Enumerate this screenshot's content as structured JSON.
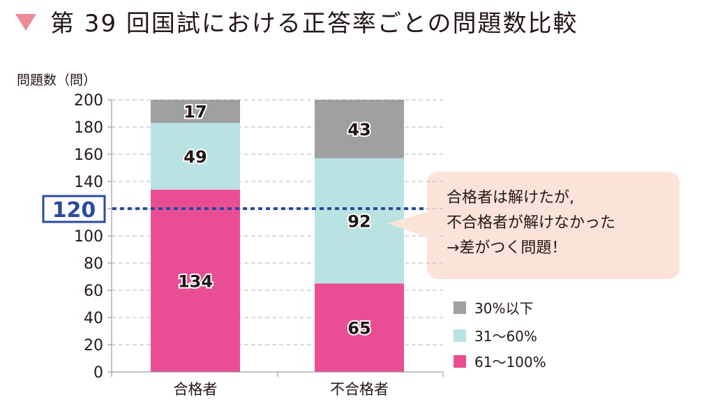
{
  "title": "第 39 回国試における正答率ごとの問題数比較",
  "callout": [
    "合格者は解けたが,",
    "不合格者が解けなかった",
    "→差がつく問題！"
  ],
  "chart_data": {
    "type": "bar",
    "stacked": true,
    "ylabel": "問題数（問）",
    "ylim": [
      0,
      200
    ],
    "yticks": [
      0,
      20,
      40,
      60,
      80,
      100,
      120,
      140,
      160,
      180,
      200
    ],
    "categories": [
      "合格者",
      "不合格者"
    ],
    "series": [
      {
        "name": "61〜100%",
        "color": "#e94e95",
        "values": [
          134,
          65
        ]
      },
      {
        "name": "31〜60%",
        "color": "#b9e2e3",
        "values": [
          49,
          92
        ]
      },
      {
        "name": "30%以下",
        "color": "#9fa0a0",
        "values": [
          17,
          43
        ]
      }
    ],
    "reference_line": {
      "value": 120,
      "label": "120",
      "color": "#2a4a9f"
    },
    "legend_position": "right"
  }
}
